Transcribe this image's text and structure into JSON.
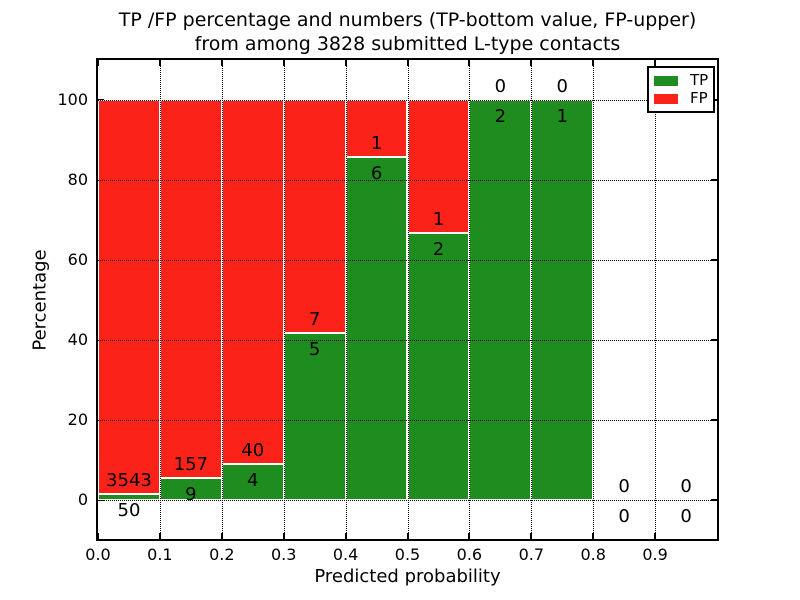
{
  "chart_data": {
    "type": "bar",
    "stacked": true,
    "units": "percent",
    "title_line1": "TP /FP percentage and numbers (TP-bottom value, FP-upper)",
    "title_line2": "from among 3828 submitted L-type contacts",
    "xlabel": "Predicted probability",
    "ylabel": "Percentage",
    "bin_edges": [
      0.0,
      0.1,
      0.2,
      0.3,
      0.4,
      0.5,
      0.6,
      0.7,
      0.8,
      0.9,
      1.0
    ],
    "xticks": [
      "0.0",
      "0.1",
      "0.2",
      "0.3",
      "0.4",
      "0.5",
      "0.6",
      "0.7",
      "0.8",
      "0.9"
    ],
    "yticks": [
      0,
      20,
      40,
      60,
      80,
      100
    ],
    "xlim": [
      0.0,
      1.0
    ],
    "ylim": [
      -10,
      110.25
    ],
    "grid": true,
    "grid_style": "dotted",
    "series": [
      {
        "name": "TP",
        "color": "#1f8c1f",
        "counts": [
          50,
          9,
          4,
          5,
          6,
          2,
          2,
          1,
          0,
          0
        ]
      },
      {
        "name": "FP",
        "color": "#fb221a",
        "counts": [
          3543,
          157,
          40,
          7,
          1,
          1,
          0,
          0,
          0,
          0
        ]
      }
    ],
    "tp_percent_by_bin": [
      1.39,
      5.42,
      9.09,
      41.67,
      85.71,
      66.67,
      100,
      100,
      null,
      null
    ],
    "bar_edge_color": "#ffffff",
    "legend": {
      "position": "upper right",
      "entries": [
        {
          "label": "TP",
          "color": "#1f8c1f"
        },
        {
          "label": "FP",
          "color": "#fb221a"
        }
      ]
    }
  }
}
